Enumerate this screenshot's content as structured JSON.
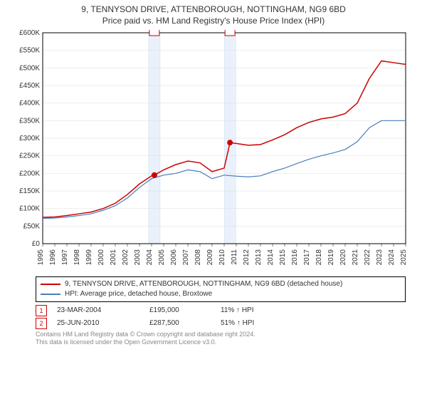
{
  "chart": {
    "type": "line",
    "title": "9, TENNYSON DRIVE, ATTENBOROUGH, NOTTINGHAM, NG9 6BD",
    "subtitle": "Price paid vs. HM Land Registry's House Price Index (HPI)",
    "title_fontsize": 12,
    "background_color": "#ffffff",
    "plot_border_color": "#000000",
    "grid_color": "#dcdcdc",
    "x": {
      "type": "year",
      "min": 1995,
      "max": 2025,
      "ticks": [
        1995,
        1996,
        1997,
        1998,
        1999,
        2000,
        2001,
        2002,
        2003,
        2004,
        2005,
        2006,
        2007,
        2008,
        2009,
        2010,
        2011,
        2012,
        2013,
        2014,
        2015,
        2016,
        2017,
        2018,
        2019,
        2020,
        2021,
        2022,
        2023,
        2024,
        2025
      ],
      "tick_fontsize": 10,
      "tick_rotation": -90
    },
    "y": {
      "min": 0,
      "max": 600000,
      "ticks": [
        0,
        50000,
        100000,
        150000,
        200000,
        250000,
        300000,
        350000,
        400000,
        450000,
        500000,
        550000,
        600000
      ],
      "tick_labels": [
        "£0",
        "£50K",
        "£100K",
        "£150K",
        "£200K",
        "£250K",
        "£300K",
        "£350K",
        "£400K",
        "£450K",
        "£500K",
        "£550K",
        "£600K"
      ],
      "tick_fontsize": 10
    },
    "series": [
      {
        "name": "property",
        "label": "9, TENNYSON DRIVE, ATTENBOROUGH, NOTTINGHAM, NG9 6BD (detached house)",
        "color": "#cc0000",
        "width": 1.5,
        "x": [
          1995,
          1996,
          1997,
          1998,
          1999,
          2000,
          2001,
          2002,
          2003,
          2004,
          2004.23,
          2005,
          2006,
          2007,
          2008,
          2009,
          2010,
          2010.48,
          2011,
          2012,
          2013,
          2014,
          2015,
          2016,
          2017,
          2018,
          2019,
          2020,
          2021,
          2022,
          2023,
          2024,
          2025
        ],
        "y": [
          75000,
          76000,
          80000,
          85000,
          90000,
          100000,
          115000,
          140000,
          170000,
          193000,
          195000,
          210000,
          225000,
          235000,
          230000,
          205000,
          215000,
          287500,
          285000,
          280000,
          282000,
          295000,
          310000,
          330000,
          345000,
          355000,
          360000,
          370000,
          400000,
          470000,
          520000,
          515000,
          510000
        ]
      },
      {
        "name": "hpi",
        "label": "HPI: Average price, detached house, Broxtowe",
        "color": "#4a7ebb",
        "width": 1.2,
        "x": [
          1995,
          1996,
          1997,
          1998,
          1999,
          2000,
          2001,
          2002,
          2003,
          2004,
          2005,
          2006,
          2007,
          2008,
          2009,
          2010,
          2011,
          2012,
          2013,
          2014,
          2015,
          2016,
          2017,
          2018,
          2019,
          2020,
          2021,
          2022,
          2023,
          2024,
          2025
        ],
        "y": [
          72000,
          73000,
          76000,
          80000,
          85000,
          95000,
          108000,
          130000,
          160000,
          185000,
          195000,
          200000,
          210000,
          205000,
          185000,
          195000,
          192000,
          190000,
          193000,
          205000,
          215000,
          228000,
          240000,
          250000,
          258000,
          268000,
          290000,
          330000,
          350000,
          350000,
          350000
        ]
      }
    ],
    "sale_markers": [
      {
        "idx": "1",
        "x": 2004.23,
        "y": 195000,
        "date": "23-MAR-2004",
        "price": "£195,000",
        "pct": "11% ↑ HPI"
      },
      {
        "idx": "2",
        "x": 2010.48,
        "y": 287500,
        "date": "25-JUN-2010",
        "price": "£287,500",
        "pct": "51% ↑ HPI"
      }
    ],
    "marker_band_color": "#eaf1fb",
    "marker_band_border": "#c9dcf2",
    "marker_dot_color": "#cc0000",
    "marker_label_border": "#cc0000",
    "legend_border": "#000000"
  },
  "footer": {
    "line1": "Contains HM Land Registry data © Crown copyright and database right 2024.",
    "line2": "This data is licensed under the Open Government Licence v3.0."
  }
}
